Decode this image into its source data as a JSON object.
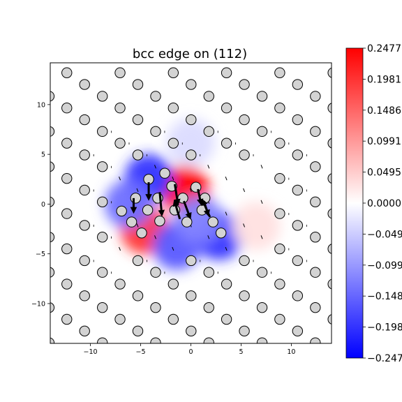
{
  "chart_data": {
    "type": "heatmap",
    "title": "bcc edge on (112)",
    "xlabel": "",
    "ylabel": "",
    "xlim": [
      -14,
      14
    ],
    "ylim": [
      -14,
      14.2
    ],
    "xticks": [
      -10,
      -5,
      0,
      5,
      10
    ],
    "xtick_labels": [
      "−10",
      "−5",
      "0",
      "5",
      "10"
    ],
    "yticks": [
      -10,
      -5,
      0,
      5,
      10
    ],
    "ytick_labels": [
      "−10",
      "−5",
      "0",
      "5",
      "10"
    ],
    "grid": false,
    "colormap": "bwr",
    "colorbar": {
      "vmin": -0.2477,
      "vmax": 0.2477,
      "ticks": [
        0.2477,
        0.1981,
        0.1486,
        0.0991,
        0.0495,
        0.0,
        -0.0495,
        -0.0991,
        -0.1486,
        -0.1981,
        -0.2477
      ],
      "tick_labels": [
        "0.2477",
        "0.1981",
        "0.1486",
        "0.0991",
        "0.0495",
        "0.0000",
        "−0.0495",
        "−0.0991",
        "−0.1486",
        "−0.1981",
        "−0.2477"
      ]
    },
    "field_lobes": [
      {
        "x": -0.6,
        "y": 1.4,
        "value": 0.2477
      },
      {
        "x": -4.6,
        "y": -2.6,
        "value": 0.2
      },
      {
        "x": -4.2,
        "y": 2.6,
        "value": -0.2
      },
      {
        "x": -6.2,
        "y": 0.0,
        "value": -0.14
      },
      {
        "x": -1.4,
        "y": -4.2,
        "value": -0.16
      },
      {
        "x": 2.8,
        "y": -3.2,
        "value": -0.2
      },
      {
        "x": 0.8,
        "y": -1.6,
        "value": -0.12
      },
      {
        "x": 0.0,
        "y": 6.2,
        "value": -0.035
      },
      {
        "x": 6.5,
        "y": -2.2,
        "value": 0.03
      }
    ],
    "atom_lattice": {
      "row_spacing": 1.18,
      "column_spacing": 5.3,
      "row_shift": 1.77,
      "y_origin": 13.2,
      "x_origin": -12.35,
      "marker_diameter_units": 1.0,
      "face_color": "#d3d3d3",
      "edge_color": "#000000"
    },
    "displaced_atoms": [
      {
        "x": -4.2,
        "y": 2.5
      },
      {
        "x": -2.6,
        "y": 3.1
      },
      {
        "x": -1.9,
        "y": 1.8
      },
      {
        "x": 0.5,
        "y": 1.7
      },
      {
        "x": -0.8,
        "y": 0.6
      },
      {
        "x": 1.4,
        "y": 0.6
      },
      {
        "x": -3.3,
        "y": 0.6
      },
      {
        "x": -5.5,
        "y": 0.6
      },
      {
        "x": -6.9,
        "y": -0.7
      },
      {
        "x": -4.3,
        "y": -0.6
      },
      {
        "x": -1.6,
        "y": -0.6
      },
      {
        "x": 1.1,
        "y": -0.6
      },
      {
        "x": -5.9,
        "y": -1.8
      },
      {
        "x": -3.1,
        "y": -1.7
      },
      {
        "x": -0.4,
        "y": -1.8
      },
      {
        "x": 2.2,
        "y": -1.8
      },
      {
        "x": -4.9,
        "y": -2.9
      },
      {
        "x": 3.0,
        "y": -2.9
      }
    ],
    "large_arrows": [
      {
        "x": -4.2,
        "y": 2.2,
        "dx": 0.0,
        "dy": -1.6
      },
      {
        "x": -3.1,
        "y": 1.2,
        "dx": 0.2,
        "dy": -2.2
      },
      {
        "x": -1.6,
        "y": 2.0,
        "dx": 0.3,
        "dy": -1.9
      },
      {
        "x": 0.7,
        "y": 1.5,
        "dx": 0.3,
        "dy": -1.4
      },
      {
        "x": -0.7,
        "y": 0.3,
        "dx": 0.6,
        "dy": -1.6
      },
      {
        "x": 1.3,
        "y": 0.3,
        "dx": 0.4,
        "dy": -1.3
      },
      {
        "x": -1.1,
        "y": -1.5,
        "dx": -0.5,
        "dy": 1.7
      },
      {
        "x": 1.9,
        "y": -1.3,
        "dx": -0.7,
        "dy": 1.6
      },
      {
        "x": -5.7,
        "y": 0.6,
        "dx": 0.0,
        "dy": -1.3
      }
    ]
  }
}
